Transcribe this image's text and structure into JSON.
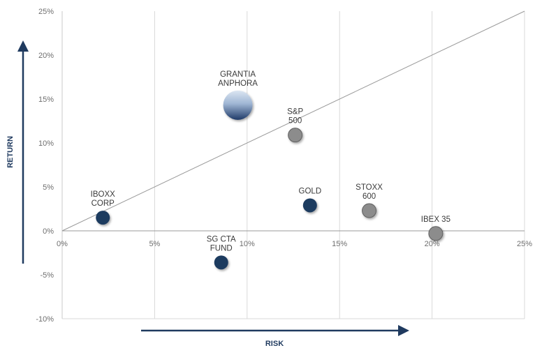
{
  "chart_data": {
    "type": "scatter",
    "title": "",
    "xlabel": "RISK",
    "ylabel": "RETURN",
    "xlim": [
      0,
      25
    ],
    "ylim": [
      -10,
      25
    ],
    "x_ticks": [
      "0%",
      "5%",
      "10%",
      "15%",
      "20%",
      "25%"
    ],
    "y_ticks": [
      "25%",
      "20%",
      "15%",
      "10%",
      "5%",
      "0%",
      "-5%",
      "-10%"
    ],
    "grid": "vertical",
    "reference_line": {
      "from": [
        0,
        0
      ],
      "to": [
        25,
        25
      ]
    },
    "points": [
      {
        "label": [
          "GRANTIA",
          "ANPHORA"
        ],
        "x": 9.5,
        "y": 14.3,
        "style": "highlight"
      },
      {
        "label": [
          "S&P",
          "500"
        ],
        "x": 12.6,
        "y": 10.9,
        "style": "grey"
      },
      {
        "label": [
          "IBOXX",
          "CORP"
        ],
        "x": 2.2,
        "y": 1.5,
        "style": "navy"
      },
      {
        "label": [
          "GOLD"
        ],
        "x": 13.4,
        "y": 2.9,
        "style": "navy"
      },
      {
        "label": [
          "STOXX",
          "600"
        ],
        "x": 16.6,
        "y": 2.3,
        "style": "grey"
      },
      {
        "label": [
          "IBEX 35"
        ],
        "x": 20.2,
        "y": -0.3,
        "style": "grey"
      },
      {
        "label": [
          "SG CTA",
          "FUND"
        ],
        "x": 8.6,
        "y": -3.6,
        "style": "navy"
      }
    ],
    "colors": {
      "navy": "#1f3a5f",
      "grey": "#8c8c8c",
      "highlight_top": "#d6e2f0",
      "highlight_bottom": "#243e68",
      "axis_arrow": "#1f3a5f",
      "grid": "#d9d9d9",
      "line": "#9a9a9a"
    }
  }
}
